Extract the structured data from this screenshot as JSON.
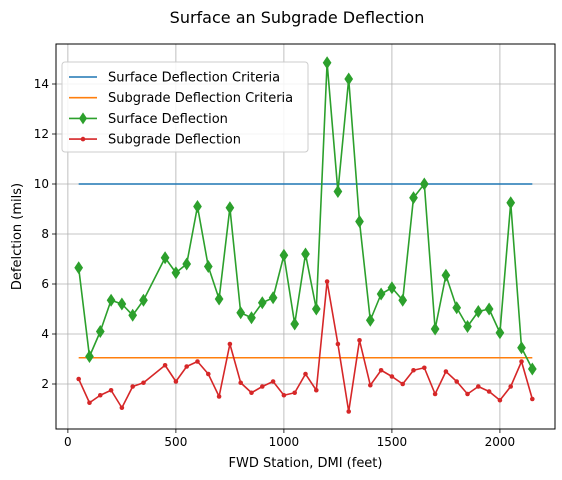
{
  "chart_data": {
    "type": "line",
    "title": "Surface an Subgrade Deflection",
    "xlabel": "FWD Station, DMI (feet)",
    "ylabel": "Defelction (mils)",
    "xlim": [
      -55,
      2255
    ],
    "ylim": [
      0.2,
      15.6
    ],
    "xticks": [
      0,
      500,
      1000,
      1500,
      2000
    ],
    "yticks": [
      2,
      4,
      6,
      8,
      10,
      12,
      14
    ],
    "grid": true,
    "legend_position": "top-left",
    "series": [
      {
        "name": "Surface Deflection Criteria",
        "color": "#1f77b4",
        "marker": "none",
        "x": [
          50,
          2150
        ],
        "y": [
          10.0,
          10.0
        ]
      },
      {
        "name": "Subgrade Deflection Criteria",
        "color": "#ff7f0e",
        "marker": "none",
        "x": [
          50,
          2150
        ],
        "y": [
          3.05,
          3.05
        ]
      },
      {
        "name": "Surface Deflection",
        "color": "#2ca02c",
        "marker": "diamond",
        "x": [
          50,
          100,
          150,
          200,
          250,
          300,
          350,
          450,
          500,
          550,
          600,
          650,
          700,
          750,
          800,
          850,
          900,
          950,
          1000,
          1050,
          1100,
          1150,
          1200,
          1250,
          1300,
          1350,
          1400,
          1450,
          1500,
          1550,
          1600,
          1650,
          1700,
          1750,
          1800,
          1850,
          1900,
          1950,
          2000,
          2050,
          2100,
          2150
        ],
        "y": [
          6.65,
          3.1,
          4.1,
          5.35,
          5.2,
          4.75,
          5.35,
          7.05,
          6.45,
          6.8,
          9.1,
          6.7,
          5.4,
          9.05,
          4.85,
          4.65,
          5.25,
          5.45,
          7.15,
          4.4,
          7.2,
          5.0,
          14.85,
          9.7,
          14.2,
          8.5,
          4.55,
          5.6,
          5.85,
          5.35,
          9.45,
          10.0,
          4.2,
          6.35,
          5.05,
          4.3,
          4.9,
          5.0,
          4.05,
          9.25,
          3.45,
          2.6
        ]
      },
      {
        "name": "Subgrade Deflection",
        "color": "#d62728",
        "marker": "circle",
        "x": [
          50,
          100,
          150,
          200,
          250,
          300,
          350,
          450,
          500,
          550,
          600,
          650,
          700,
          750,
          800,
          850,
          900,
          950,
          1000,
          1050,
          1100,
          1150,
          1200,
          1250,
          1300,
          1350,
          1400,
          1450,
          1500,
          1550,
          1600,
          1650,
          1700,
          1750,
          1800,
          1850,
          1900,
          1950,
          2000,
          2050,
          2100,
          2150
        ],
        "y": [
          2.2,
          1.25,
          1.55,
          1.75,
          1.05,
          1.9,
          2.05,
          2.75,
          2.1,
          2.7,
          2.9,
          2.4,
          1.5,
          3.6,
          2.05,
          1.65,
          1.9,
          2.1,
          1.55,
          1.65,
          2.4,
          1.75,
          6.1,
          3.6,
          0.9,
          3.75,
          1.95,
          2.55,
          2.3,
          2.0,
          2.55,
          2.65,
          1.6,
          2.5,
          2.1,
          1.6,
          1.9,
          1.7,
          1.35,
          1.9,
          2.9,
          1.4
        ]
      }
    ]
  }
}
